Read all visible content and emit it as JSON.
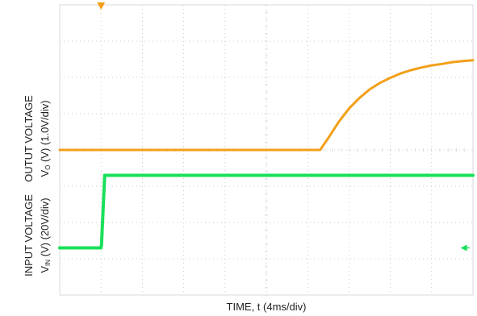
{
  "chart_data": {
    "type": "line",
    "xlabel": "TIME, t (4ms/div)",
    "y_upper_label": {
      "line1": "OUTUT VOLTAGE",
      "line2_prefix": "V",
      "line2_sub": "O",
      "line2_suffix": " (V) (1.0V/div)"
    },
    "y_lower_label": {
      "line1": "INPUT VOLTAGE",
      "line2_prefix": "V",
      "line2_sub": "IN",
      "line2_suffix": " (V) (20V/div)"
    },
    "grid": {
      "x_divisions": 10,
      "y_divisions": 8,
      "style": "dotted"
    },
    "x_range": [
      0,
      40
    ],
    "series": [
      {
        "color": "#f2a01a",
        "x": [
          0,
          4,
          8,
          12,
          16,
          20,
          24,
          25.2,
          26,
          27,
          28,
          29,
          30,
          31,
          32,
          33,
          34,
          35,
          36,
          37,
          38,
          39,
          40
        ],
        "values": [
          0,
          0,
          0,
          0,
          0,
          0,
          0,
          0,
          0.33,
          0.77,
          1.14,
          1.43,
          1.67,
          1.85,
          1.99,
          2.11,
          2.2,
          2.27,
          2.33,
          2.37,
          2.42,
          2.45,
          2.47
        ]
      },
      {
        "color": "#19e05a",
        "x": [
          0,
          4,
          4.05,
          4.35,
          8,
          12,
          16,
          20,
          24,
          28,
          32,
          36,
          40
        ],
        "values": [
          0,
          0,
          0.1,
          2.0,
          2.0,
          2.0,
          2.0,
          2.0,
          2.0,
          2.0,
          2.0,
          2.0,
          2.0
        ]
      }
    ],
    "markers": [
      {
        "name": "trigger-marker",
        "color": "#f2a01a",
        "shape": "triangle-down",
        "x": 4
      },
      {
        "name": "channel-ground-marker",
        "color": "#19e05a",
        "shape": "arrow-left"
      }
    ]
  }
}
